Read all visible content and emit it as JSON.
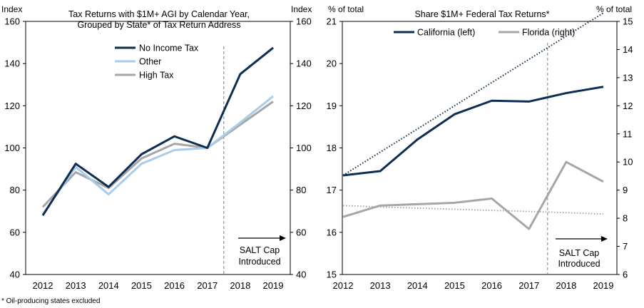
{
  "footnote": "* Oil-producing states excluded",
  "chart_data": [
    {
      "type": "line",
      "title": [
        "Tax Returns with $1M+ AGI by Calendar Year,",
        "Grouped  by State* of Tax Return Address"
      ],
      "ylabel_left": "Index",
      "ylabel_right": "Index",
      "ylim": [
        40,
        160
      ],
      "yticks": [
        40,
        60,
        80,
        100,
        120,
        140,
        160
      ],
      "categories": [
        "2012",
        "2013",
        "2014",
        "2015",
        "2016",
        "2017",
        "2018",
        "2019"
      ],
      "series": [
        {
          "name": "No Income Tax",
          "color": "#0d2d52",
          "values": [
            68,
            92.5,
            81.5,
            97,
            105.5,
            100,
            135,
            147.5
          ]
        },
        {
          "name": "Other",
          "color": "#a9cde9",
          "values": [
            68.5,
            91,
            78,
            92.5,
            99,
            100,
            112,
            124.5
          ]
        },
        {
          "name": "High Tax",
          "color": "#a6a6a6",
          "values": [
            72,
            88.5,
            81,
            95,
            102,
            100,
            111,
            122
          ]
        }
      ],
      "divider": {
        "after_category": "2017",
        "style": "dashed"
      },
      "annotation": [
        "SALT Cap",
        "Introduced"
      ]
    },
    {
      "type": "line",
      "title": [
        "Share $1M+ Federal Tax Returns*"
      ],
      "ylabel_left": "% of total",
      "ylabel_right": "% of total",
      "ylim_left": [
        15,
        21
      ],
      "yticks_left": [
        15,
        16,
        17,
        18,
        19,
        20,
        21
      ],
      "ylim_right": [
        6,
        15
      ],
      "yticks_right": [
        6,
        7,
        8,
        9,
        10,
        11,
        12,
        13,
        14,
        15
      ],
      "categories": [
        "2012",
        "2013",
        "2014",
        "2015",
        "2016",
        "2017",
        "2018",
        "2019"
      ],
      "series": [
        {
          "name": "California (left)",
          "axis": "left",
          "color": "#0d2d52",
          "values": [
            17.35,
            17.45,
            18.2,
            18.8,
            19.12,
            19.1,
            19.3,
            19.45
          ],
          "trend": [
            17.35,
            17.9,
            18.45,
            19.0,
            19.55,
            20.1,
            20.65,
            21.2
          ]
        },
        {
          "name": "Florida (right)",
          "axis": "right",
          "color": "#a6a6a6",
          "values": [
            8.05,
            8.45,
            8.5,
            8.55,
            8.7,
            7.62,
            10.0,
            9.3
          ],
          "trend": [
            8.45,
            8.4,
            8.36,
            8.32,
            8.28,
            8.24,
            8.2,
            8.15
          ]
        }
      ],
      "divider": {
        "after_category": "2017",
        "style": "dashed"
      },
      "annotation": [
        "SALT Cap",
        "Introduced"
      ]
    }
  ]
}
